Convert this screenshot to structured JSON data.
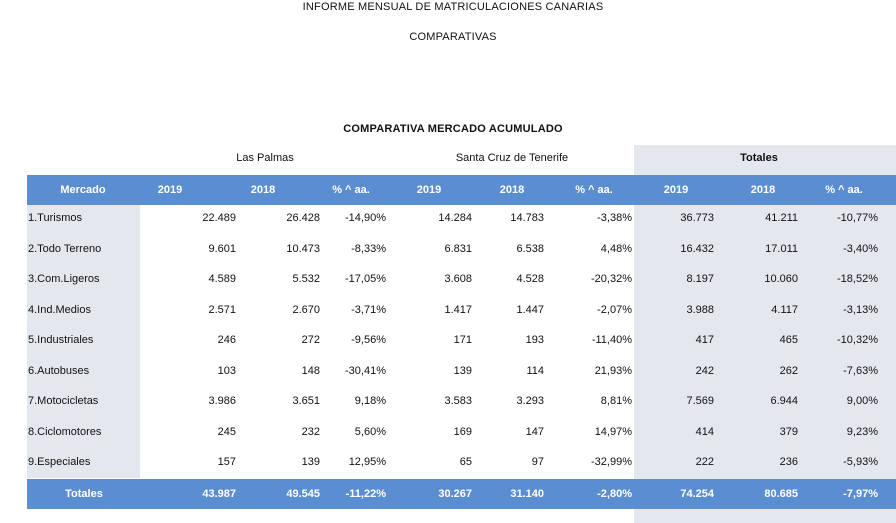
{
  "header": {
    "title": "INFORME MENSUAL DE MATRICULACIONES CANARIAS",
    "subtitle": "COMPARATIVAS",
    "section": "COMPARATIVA MERCADO ACUMULADO"
  },
  "groups": {
    "a": "Las Palmas",
    "b": "Santa Cruz de Tenerife",
    "c": "Totales"
  },
  "columns": [
    "Mercado",
    "2019",
    "2018",
    "% ^ aa.",
    "2019",
    "2018",
    "% ^ aa.",
    "2019",
    "2018",
    "% ^ aa."
  ],
  "rows": [
    [
      "1.Turismos",
      "22.489",
      "26.428",
      "-14,90%",
      "14.284",
      "14.783",
      "-3,38%",
      "36.773",
      "41.211",
      "-10,77%"
    ],
    [
      "2.Todo Terreno",
      "9.601",
      "10.473",
      "-8,33%",
      "6.831",
      "6.538",
      "4,48%",
      "16.432",
      "17.011",
      "-3,40%"
    ],
    [
      "3.Com.Ligeros",
      "4.589",
      "5.532",
      "-17,05%",
      "3.608",
      "4.528",
      "-20,32%",
      "8.197",
      "10.060",
      "-18,52%"
    ],
    [
      "4.Ind.Medios",
      "2.571",
      "2.670",
      "-3,71%",
      "1.417",
      "1.447",
      "-2,07%",
      "3.988",
      "4.117",
      "-3,13%"
    ],
    [
      "5.Industriales",
      "246",
      "272",
      "-9,56%",
      "171",
      "193",
      "-11,40%",
      "417",
      "465",
      "-10,32%"
    ],
    [
      "6.Autobuses",
      "103",
      "148",
      "-30,41%",
      "139",
      "114",
      "21,93%",
      "242",
      "262",
      "-7,63%"
    ],
    [
      "7.Motocicletas",
      "3.986",
      "3.651",
      "9,18%",
      "3.583",
      "3.293",
      "8,81%",
      "7.569",
      "6.944",
      "9,00%"
    ],
    [
      "8.Ciclomotores",
      "245",
      "232",
      "5,60%",
      "169",
      "147",
      "14,97%",
      "414",
      "379",
      "9,23%"
    ],
    [
      "9.Especiales",
      "157",
      "139",
      "12,95%",
      "65",
      "97",
      "-32,99%",
      "222",
      "236",
      "-5,93%"
    ]
  ],
  "totals": [
    "Totales",
    "43.987",
    "49.545",
    "-11,22%",
    "30.267",
    "31.140",
    "-2,80%",
    "74.254",
    "80.685",
    "-7,97%"
  ],
  "colors": {
    "header_band": "#5b8ed0",
    "shade": "#e4e7ee"
  }
}
